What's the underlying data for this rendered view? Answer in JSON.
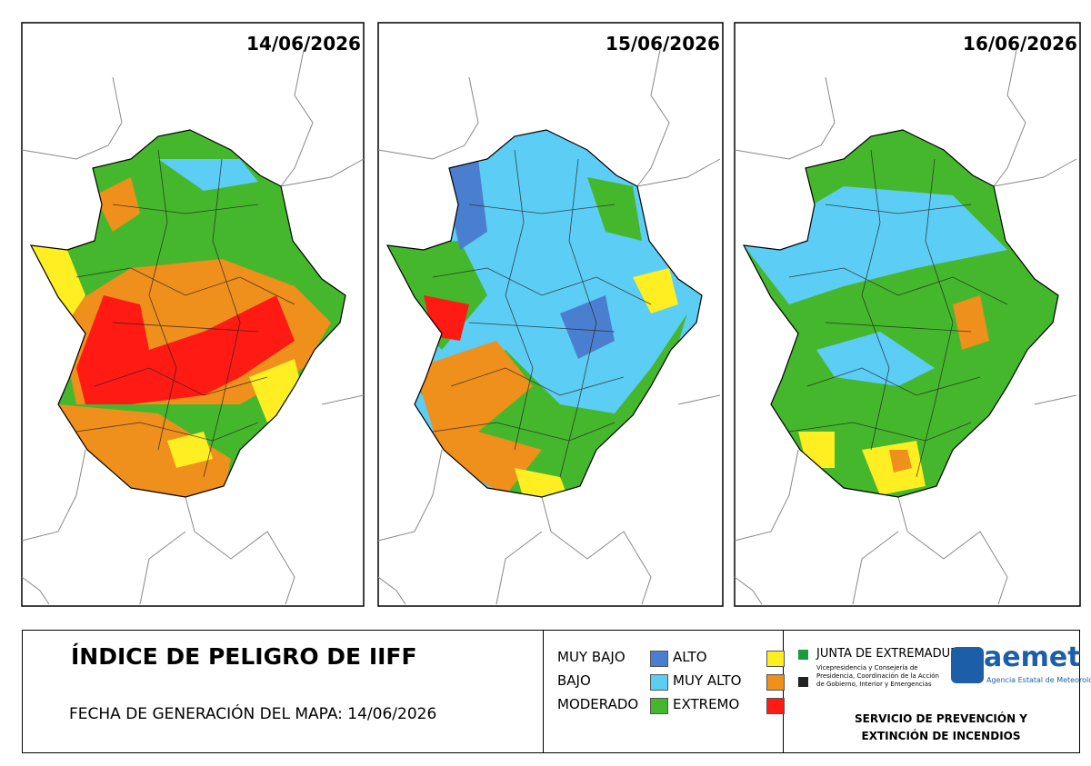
{
  "maps": [
    {
      "date": "14/06/2026"
    },
    {
      "date": "15/06/2026"
    },
    {
      "date": "16/06/2026"
    }
  ],
  "title": "ÍNDICE DE PELIGRO DE IIFF",
  "generation": "FECHA DE GENERACIÓN DEL MAPA: 14/06/2026",
  "legend": [
    {
      "label": "MUY BAJO",
      "color": "#4a7fcf"
    },
    {
      "label": "BAJO",
      "color": "#5ccdf5"
    },
    {
      "label": "MODERADO",
      "color": "#45b72d"
    },
    {
      "label": "ALTO",
      "color": "#ffee22"
    },
    {
      "label": "MUY ALTO",
      "color": "#ef8f1c"
    },
    {
      "label": "EXTREMO",
      "color": "#ff1a14"
    }
  ],
  "junta": {
    "name": "JUNTA DE EXTREMADURA",
    "subtitle": "Vicepresidencia y Consejería de Presidencia, Coordinación de la Acción de Gobierno, Interior y Emergencias"
  },
  "aemet": {
    "name": "aemet",
    "subtitle": "Agencia Estatal de Meteorología"
  },
  "service": "SERVICIO DE PREVENCIÓN Y EXTINCIÓN DE INCENDIOS"
}
